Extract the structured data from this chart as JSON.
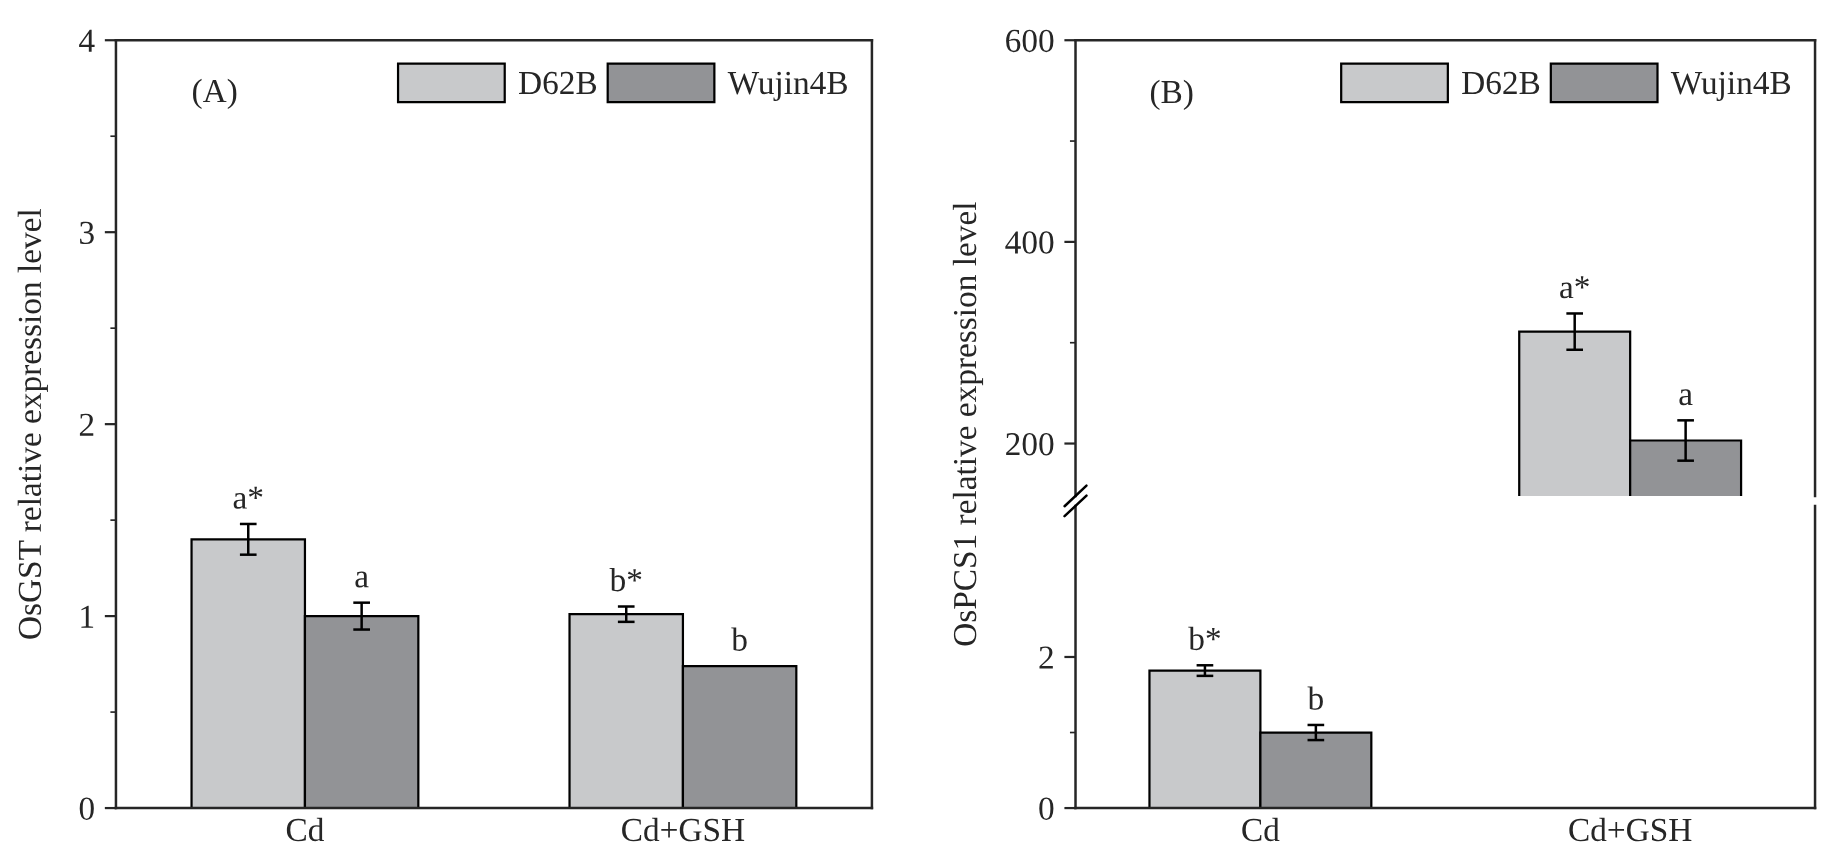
{
  "chart_data": [
    {
      "type": "bar",
      "categories": [
        "Cd",
        "Cd+GSH"
      ],
      "ylabel": "OsGST relative expression level",
      "ylim": [
        0,
        4
      ],
      "yticks": [
        0,
        1,
        2,
        3,
        4
      ],
      "legend": "top right",
      "annotations": [
        "(A)"
      ],
      "series": [
        {
          "name": "D62B",
          "color": "#c8c9cb",
          "values": [
            1.4,
            1.01
          ],
          "errors": [
            0.08,
            0.04
          ],
          "value_labels": [
            "a*",
            "b*"
          ]
        },
        {
          "name": "Wujin4B",
          "color": "#929396",
          "values": [
            1.0,
            0.74
          ],
          "errors": [
            0.07,
            null
          ],
          "value_labels": [
            "a",
            "b"
          ]
        }
      ]
    },
    {
      "type": "bar",
      "categories": [
        null,
        null
      ],
      "ylabel": "OsPCS1 relative expression level",
      "ylim": [
        148,
        600
      ],
      "yticks": [
        200,
        400,
        600
      ],
      "legend": "top right",
      "tick_labels": "y",
      "annotations": [
        "(B)"
      ],
      "series": [
        {
          "name": "D62B",
          "color": "#c8c9cb",
          "values": [
            null,
            311
          ],
          "errors": [
            null,
            18
          ],
          "value_labels": [
            null,
            "a*"
          ]
        },
        {
          "name": "Wujin4B",
          "color": "#929396",
          "values": [
            null,
            203
          ],
          "errors": [
            null,
            20
          ],
          "value_labels": [
            null,
            "a"
          ]
        }
      ]
    },
    {
      "type": "bar",
      "categories": [
        "Cd",
        "Cd+GSH"
      ],
      "ylim": [
        0,
        4
      ],
      "yticks": [
        0,
        2
      ],
      "series": [
        {
          "color": "#c8c9cb",
          "values": [
            1.82,
            null
          ],
          "errors": [
            0.07,
            null
          ],
          "value_labels": [
            "b*",
            null
          ]
        },
        {
          "color": "#929396",
          "values": [
            1.0,
            null
          ],
          "errors": [
            0.1,
            null
          ],
          "value_labels": [
            "b",
            null
          ]
        }
      ]
    }
  ]
}
